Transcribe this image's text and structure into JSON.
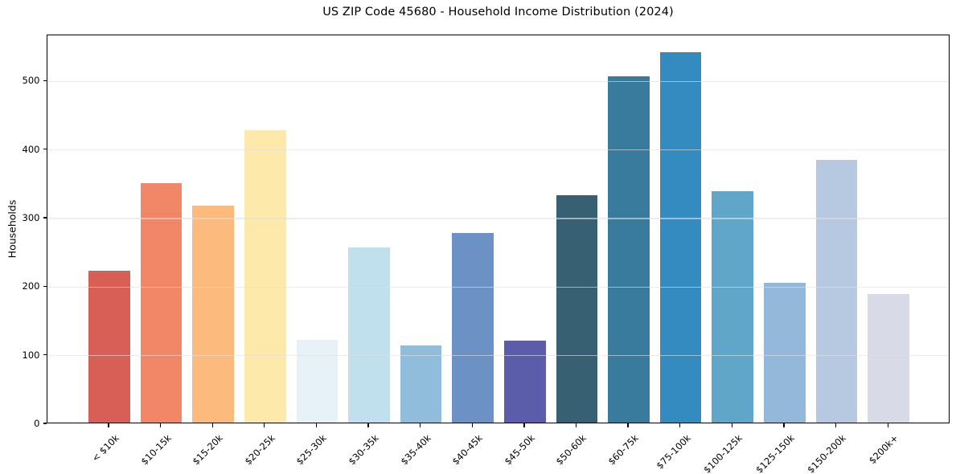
{
  "chart_data": {
    "type": "bar",
    "title": "US ZIP Code 45680 - Household Income Distribution (2024)",
    "xlabel": "",
    "ylabel": "Households",
    "categories": [
      "< $10k",
      "$10-15k",
      "$15-20k",
      "$20-25k",
      "$25-30k",
      "$30-35k",
      "$35-40k",
      "$40-45k",
      "$45-50k",
      "$50-60k",
      "$60-75k",
      "$75-100k",
      "$100-125k",
      "$125-150k",
      "$150-200k",
      "$200k+"
    ],
    "values": [
      221,
      349,
      316,
      426,
      121,
      255,
      113,
      276,
      120,
      332,
      505,
      540,
      337,
      204,
      383,
      188
    ],
    "bar_colors": [
      "#d85f55",
      "#f28768",
      "#fcbb7c",
      "#fde9a9",
      "#e7f2f8",
      "#bfe0ec",
      "#90bddc",
      "#6c92c5",
      "#5b5dab",
      "#386073",
      "#387b9d",
      "#348bc0",
      "#60a6c9",
      "#93b8d9",
      "#b6c9e0",
      "#d8dae8"
    ],
    "yticks": [
      0,
      100,
      200,
      300,
      400,
      500
    ],
    "ylim": [
      0,
      567
    ],
    "grid": "horizontal-only",
    "legend": "none",
    "x_tick_rotation": 45,
    "bar_relative_width": 0.8
  },
  "style_colors": {
    "background": "#ffffff",
    "spine": "#000000",
    "grid": "#e1e1e1",
    "text": "#000000"
  }
}
